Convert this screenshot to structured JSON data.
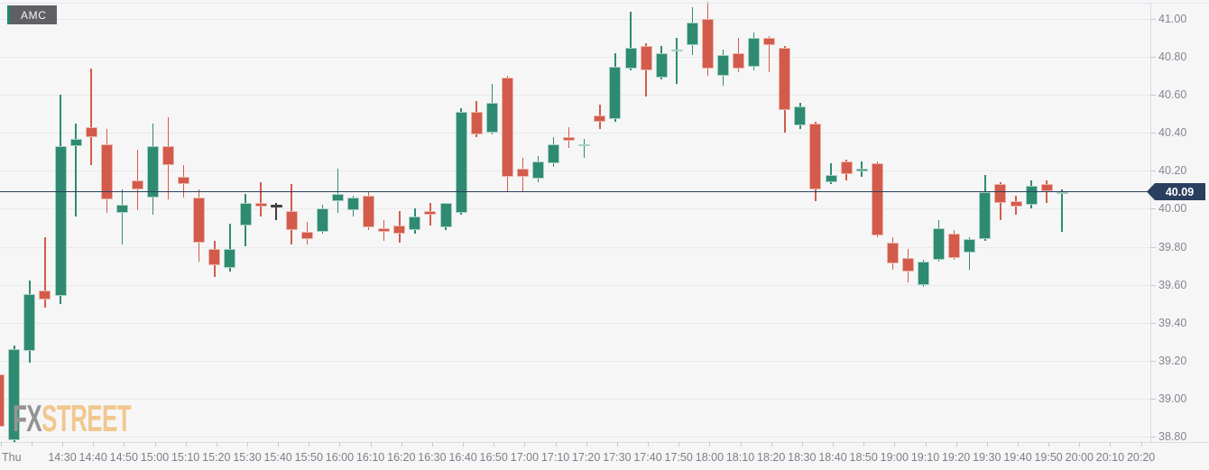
{
  "ticker": "AMC",
  "day_label": "Thu",
  "current_price_label": "40.09",
  "watermark": {
    "part1": "FX",
    "part2": "STREET"
  },
  "colors": {
    "up_fill": "#2e8b72",
    "up_border": "#a9cfc0",
    "up_wick": "#2e8b72",
    "down_fill": "#d35b4b",
    "down_border": "#eab4a7",
    "down_wick": "#d35b4b",
    "neutral": "#3f3f3f",
    "price_line": "#2a3f5f",
    "background": "#f6f6f7",
    "grid": "#e9e9ec"
  },
  "y_axis": {
    "labels": [
      "41.00",
      "40.80",
      "40.60",
      "40.40",
      "40.20",
      "40.00",
      "39.80",
      "39.60",
      "39.40",
      "39.20",
      "39.00",
      "38.80"
    ],
    "min": 38.8,
    "max": 41.0,
    "current_price": 40.09
  },
  "x_axis": {
    "labels": [
      "14:30",
      "14:40",
      "14:50",
      "15:00",
      "15:10",
      "15:20",
      "15:30",
      "15:40",
      "15:50",
      "16:00",
      "16:10",
      "16:20",
      "16:30",
      "16:40",
      "16:50",
      "17:00",
      "17:10",
      "17:20",
      "17:30",
      "17:40",
      "17:50",
      "18:00",
      "18:10",
      "18:20",
      "18:30",
      "18:40",
      "18:50",
      "19:00",
      "19:10",
      "19:20",
      "19:30",
      "19:40",
      "19:50",
      "20:00",
      "20:10",
      "20:20"
    ]
  },
  "chart_data": {
    "type": "candlestick",
    "title": "AMC intraday 5-minute candlestick chart",
    "interval_minutes": 5,
    "grid": true,
    "candles_ohlc_format": [
      "time",
      "open",
      "high",
      "low",
      "close",
      "flag(n=neutral)"
    ],
    "candles": [
      [
        "14:10",
        39.13,
        39.15,
        38.82,
        38.85
      ],
      [
        "14:15",
        38.78,
        39.28,
        38.76,
        39.26
      ],
      [
        "14:20",
        39.25,
        39.62,
        39.19,
        39.55
      ],
      [
        "14:25",
        39.57,
        39.85,
        39.48,
        39.52
      ],
      [
        "14:30",
        39.54,
        40.6,
        39.5,
        40.33
      ],
      [
        "14:35",
        40.33,
        40.45,
        39.96,
        40.37
      ],
      [
        "14:40",
        40.43,
        40.74,
        40.23,
        40.38
      ],
      [
        "14:45",
        40.34,
        40.42,
        39.98,
        40.05
      ],
      [
        "14:50",
        39.98,
        40.1,
        39.81,
        40.02
      ],
      [
        "14:55",
        40.15,
        40.31,
        39.99,
        40.1
      ],
      [
        "15:00",
        40.06,
        40.45,
        39.97,
        40.33
      ],
      [
        "15:05",
        40.33,
        40.48,
        40.05,
        40.23
      ],
      [
        "15:10",
        40.17,
        40.23,
        40.06,
        40.13
      ],
      [
        "15:15",
        40.06,
        40.1,
        39.72,
        39.82
      ],
      [
        "15:20",
        39.79,
        39.83,
        39.64,
        39.7
      ],
      [
        "15:25",
        39.69,
        39.92,
        39.67,
        39.79
      ],
      [
        "15:30",
        39.91,
        40.08,
        39.8,
        40.03
      ],
      [
        "15:35",
        40.03,
        40.14,
        39.96,
        40.01
      ],
      [
        "15:40",
        40.02,
        40.03,
        39.94,
        40.02,
        "n"
      ],
      [
        "15:45",
        39.99,
        40.13,
        39.81,
        39.89
      ],
      [
        "15:50",
        39.88,
        39.93,
        39.81,
        39.84
      ],
      [
        "15:55",
        39.88,
        40.02,
        39.87,
        40.0
      ],
      [
        "16:00",
        40.04,
        40.21,
        39.98,
        40.08
      ],
      [
        "16:05",
        39.99,
        40.07,
        39.96,
        40.06
      ],
      [
        "16:10",
        40.07,
        40.09,
        39.89,
        39.9
      ],
      [
        "16:15",
        39.9,
        39.94,
        39.83,
        39.88
      ],
      [
        "16:20",
        39.91,
        39.99,
        39.82,
        39.87
      ],
      [
        "16:25",
        39.89,
        40.0,
        39.87,
        39.96
      ],
      [
        "16:30",
        39.99,
        40.03,
        39.91,
        39.97
      ],
      [
        "16:35",
        39.9,
        40.03,
        39.89,
        40.03
      ],
      [
        "16:40",
        39.98,
        40.53,
        39.97,
        40.51
      ],
      [
        "16:45",
        40.51,
        40.57,
        40.38,
        40.39
      ],
      [
        "16:50",
        40.4,
        40.66,
        40.39,
        40.56
      ],
      [
        "16:55",
        40.69,
        40.7,
        40.09,
        40.17
      ],
      [
        "17:00",
        40.21,
        40.27,
        40.09,
        40.17
      ],
      [
        "17:05",
        40.16,
        40.28,
        40.14,
        40.25
      ],
      [
        "17:10",
        40.24,
        40.38,
        40.22,
        40.34
      ],
      [
        "17:15",
        40.38,
        40.43,
        40.32,
        40.36
      ],
      [
        "17:20",
        40.33,
        40.37,
        40.27,
        40.34
      ],
      [
        "17:25",
        40.49,
        40.55,
        40.42,
        40.46
      ],
      [
        "17:30",
        40.47,
        40.82,
        40.46,
        40.75
      ],
      [
        "17:35",
        40.74,
        41.04,
        40.73,
        40.85
      ],
      [
        "17:40",
        40.86,
        40.87,
        40.59,
        40.73
      ],
      [
        "17:45",
        40.69,
        40.86,
        40.68,
        40.82
      ],
      [
        "17:50",
        40.83,
        40.9,
        40.66,
        40.84
      ],
      [
        "17:55",
        40.86,
        41.06,
        40.81,
        40.98
      ],
      [
        "18:00",
        41.0,
        41.09,
        40.7,
        40.74
      ],
      [
        "18:05",
        40.7,
        40.84,
        40.65,
        40.81
      ],
      [
        "18:10",
        40.82,
        40.9,
        40.72,
        40.74
      ],
      [
        "18:15",
        40.75,
        40.93,
        40.73,
        40.9
      ],
      [
        "18:20",
        40.9,
        40.91,
        40.72,
        40.86
      ],
      [
        "18:25",
        40.85,
        40.86,
        40.4,
        40.52
      ],
      [
        "18:30",
        40.44,
        40.56,
        40.42,
        40.54
      ],
      [
        "18:35",
        40.45,
        40.46,
        40.04,
        40.1
      ],
      [
        "18:40",
        40.14,
        40.24,
        40.13,
        40.18
      ],
      [
        "18:45",
        40.25,
        40.26,
        40.15,
        40.18
      ],
      [
        "18:50",
        40.21,
        40.25,
        40.17,
        40.21
      ],
      [
        "18:55",
        40.24,
        40.25,
        39.85,
        39.86
      ],
      [
        "19:00",
        39.82,
        39.85,
        39.68,
        39.71
      ],
      [
        "19:05",
        39.74,
        39.79,
        39.61,
        39.67
      ],
      [
        "19:10",
        39.6,
        39.73,
        39.59,
        39.72
      ],
      [
        "19:15",
        39.73,
        39.94,
        39.72,
        39.9
      ],
      [
        "19:20",
        39.87,
        39.89,
        39.73,
        39.74
      ],
      [
        "19:25",
        39.77,
        39.85,
        39.68,
        39.84
      ],
      [
        "19:30",
        39.84,
        40.18,
        39.83,
        40.09
      ],
      [
        "19:35",
        40.13,
        40.14,
        39.94,
        40.03
      ],
      [
        "19:40",
        40.04,
        40.07,
        39.97,
        40.01
      ],
      [
        "19:45",
        40.02,
        40.15,
        40.0,
        40.12
      ],
      [
        "19:50",
        40.13,
        40.15,
        40.03,
        40.09
      ],
      [
        "19:55",
        40.09,
        40.1,
        39.88,
        40.09
      ]
    ]
  }
}
